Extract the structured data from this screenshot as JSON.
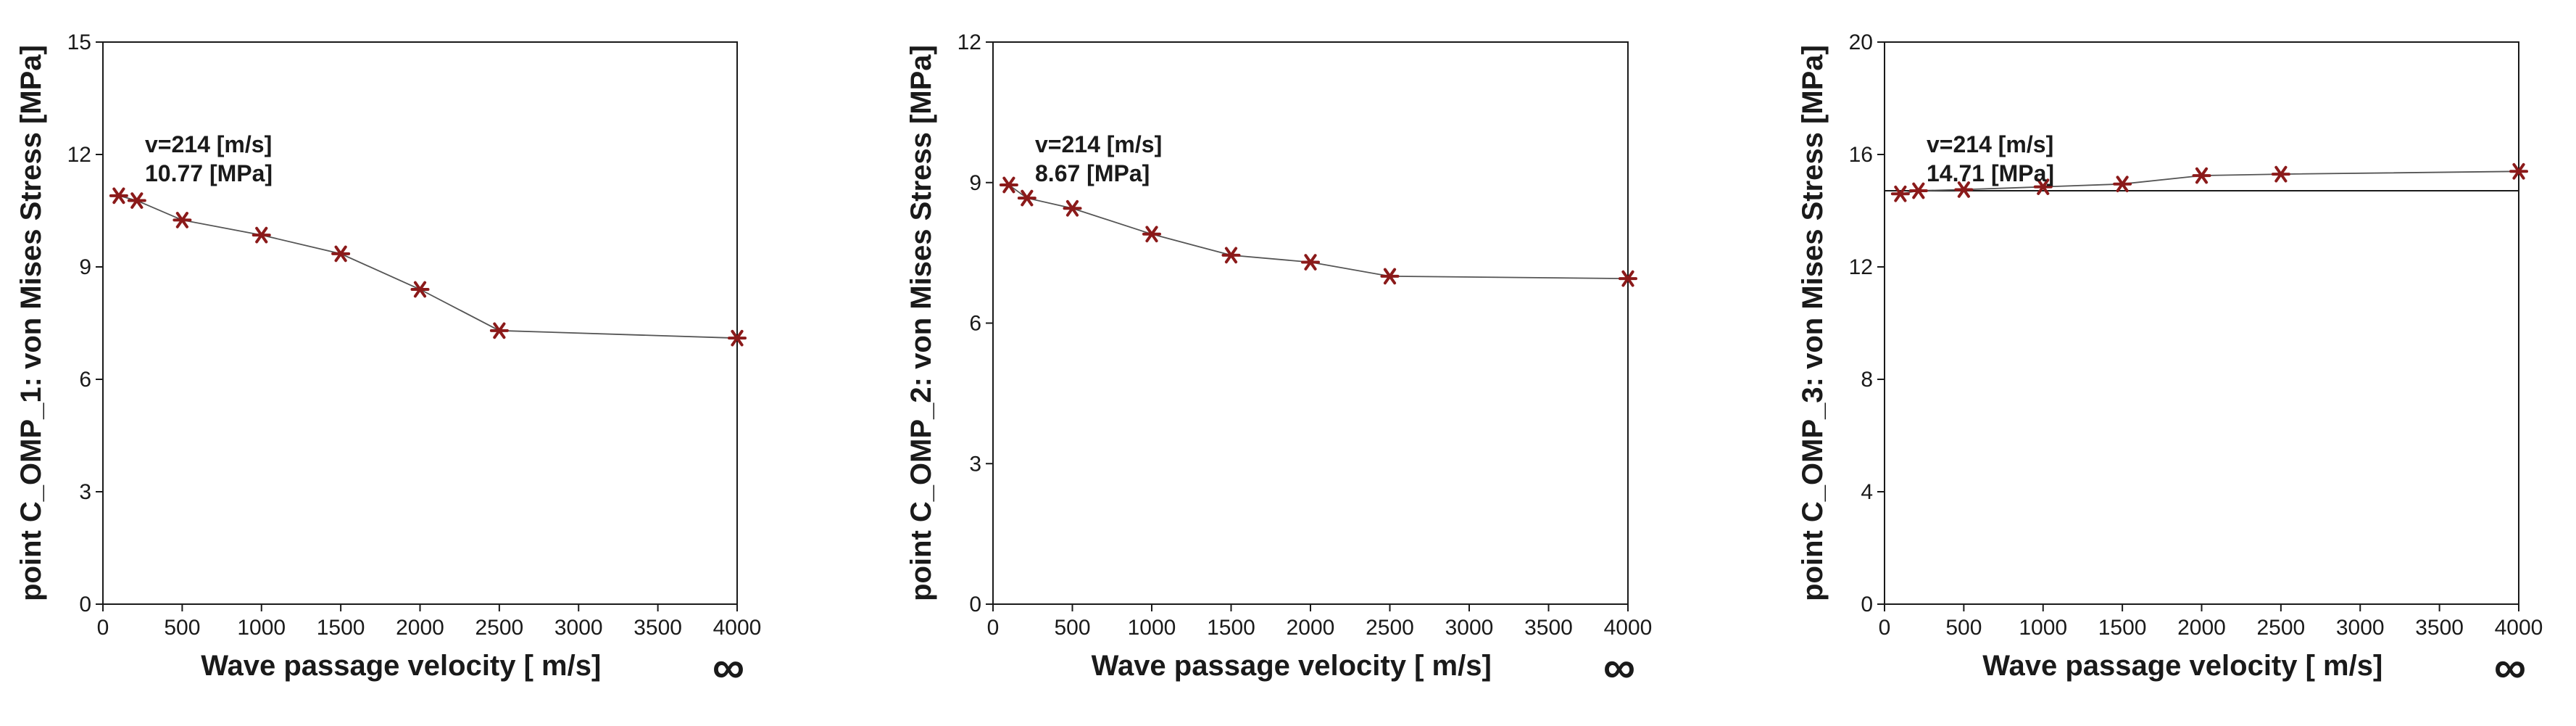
{
  "chart_data": [
    {
      "type": "line",
      "title": "",
      "xlabel": "Wave passage velocity [ m/s]",
      "ylabel": "point C_OMP_1: von Mises Stress [MPa]",
      "xlim": [
        0,
        4000
      ],
      "ylim": [
        0,
        15
      ],
      "xticks": [
        0,
        500,
        1000,
        1500,
        2000,
        2500,
        3000,
        3500,
        4000
      ],
      "yticks": [
        0,
        3,
        6,
        9,
        12,
        15
      ],
      "xtick_labels": [
        "0",
        "500",
        "1000",
        "1500",
        "2000",
        "2500",
        "3000",
        "3500",
        "4000"
      ],
      "ytick_labels": [
        "0",
        "3",
        "6",
        "9",
        "12",
        "15"
      ],
      "x_end_symbol": "∞",
      "series": [
        {
          "name": "C_OMP_1",
          "x": [
            100,
            214,
            500,
            1000,
            1500,
            2000,
            2500,
            4000
          ],
          "y": [
            10.9,
            10.77,
            10.25,
            9.85,
            9.35,
            8.4,
            7.3,
            7.1
          ]
        }
      ],
      "reference_line": null,
      "annotation": {
        "line1": "v=214 [m/s]",
        "line2": "10.77 [MPa]"
      },
      "marker_color": "#8b1a1a",
      "line_color": "#555555"
    },
    {
      "type": "line",
      "title": "",
      "xlabel": "Wave passage velocity [ m/s]",
      "ylabel": "point C_OMP_2: von Mises Stress [MPa]",
      "xlim": [
        0,
        4000
      ],
      "ylim": [
        0,
        12
      ],
      "xticks": [
        0,
        500,
        1000,
        1500,
        2000,
        2500,
        3000,
        3500,
        4000
      ],
      "yticks": [
        0,
        3,
        6,
        9,
        12
      ],
      "xtick_labels": [
        "0",
        "500",
        "1000",
        "1500",
        "2000",
        "2500",
        "3000",
        "3500",
        "4000"
      ],
      "ytick_labels": [
        "0",
        "3",
        "6",
        "9",
        "12"
      ],
      "x_end_symbol": "∞",
      "series": [
        {
          "name": "C_OMP_2",
          "x": [
            100,
            214,
            500,
            1000,
            1500,
            2000,
            2500,
            4000
          ],
          "y": [
            8.95,
            8.67,
            8.45,
            7.9,
            7.45,
            7.3,
            7.0,
            6.95
          ]
        }
      ],
      "reference_line": null,
      "annotation": {
        "line1": "v=214 [m/s]",
        "line2": "8.67 [MPa]"
      },
      "marker_color": "#8b1a1a",
      "line_color": "#555555"
    },
    {
      "type": "line",
      "title": "",
      "xlabel": "Wave passage velocity [ m/s]",
      "ylabel": "point C_OMP_3: von Mises Stress [MPa]",
      "xlim": [
        0,
        4000
      ],
      "ylim": [
        0,
        20
      ],
      "xticks": [
        0,
        500,
        1000,
        1500,
        2000,
        2500,
        3000,
        3500,
        4000
      ],
      "yticks": [
        0,
        4,
        8,
        12,
        16,
        20
      ],
      "xtick_labels": [
        "0",
        "500",
        "1000",
        "1500",
        "2000",
        "2500",
        "3000",
        "3500",
        "4000"
      ],
      "ytick_labels": [
        "0",
        "4",
        "8",
        "12",
        "16",
        "20"
      ],
      "x_end_symbol": "∞",
      "series": [
        {
          "name": "C_OMP_3",
          "x": [
            100,
            214,
            500,
            1000,
            1500,
            2000,
            2500,
            4000
          ],
          "y": [
            14.6,
            14.71,
            14.75,
            14.85,
            14.95,
            15.25,
            15.3,
            15.4
          ]
        }
      ],
      "reference_line": 14.71,
      "annotation": {
        "line1": "v=214 [m/s]",
        "line2": "14.71 [MPa]"
      },
      "marker_color": "#8b1a1a",
      "line_color": "#555555"
    }
  ]
}
